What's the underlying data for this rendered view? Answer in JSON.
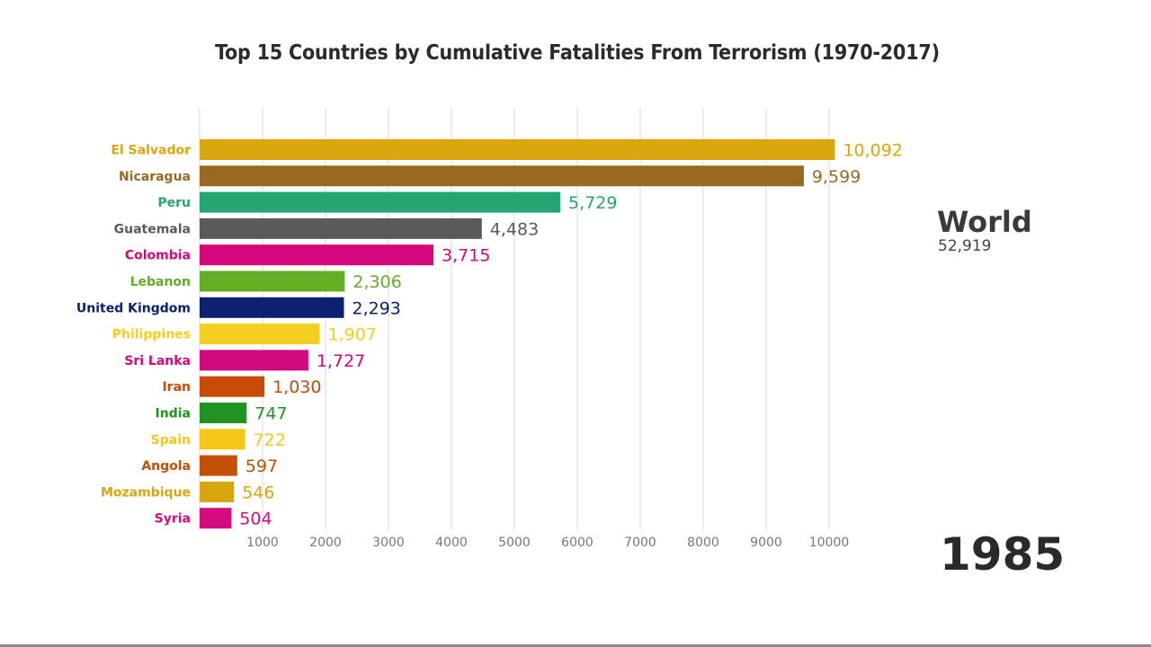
{
  "chart_data": {
    "type": "bar",
    "orientation": "horizontal",
    "title": "Top 15 Countries by Cumulative Fatalities From Terrorism (1970-2017)",
    "xlabel": "",
    "ylabel": "",
    "xlim": [
      0,
      10000
    ],
    "xticks": [
      1000,
      2000,
      3000,
      4000,
      5000,
      6000,
      7000,
      8000,
      9000,
      10000
    ],
    "grid": true,
    "categories": [
      "El Salvador",
      "Nicaragua",
      "Peru",
      "Guatemala",
      "Colombia",
      "Lebanon",
      "United Kingdom",
      "Philippines",
      "Sri Lanka",
      "Iran",
      "India",
      "Spain",
      "Angola",
      "Mozambique",
      "Syria"
    ],
    "values": [
      10092,
      9599,
      5729,
      4483,
      3715,
      2306,
      2293,
      1907,
      1727,
      1030,
      747,
      722,
      597,
      546,
      504
    ],
    "value_labels": [
      "10,092",
      "9,599",
      "5,729",
      "4,483",
      "3,715",
      "2,306",
      "2,293",
      "1,907",
      "1,727",
      "1,030",
      "747",
      "722",
      "597",
      "546",
      "504"
    ],
    "colors": [
      "#dba70c",
      "#9a6a22",
      "#23a672",
      "#5a5a5a",
      "#d4087a",
      "#62ae25",
      "#0c2170",
      "#f5cf1f",
      "#d1097c",
      "#c74c07",
      "#219320",
      "#f7c61a",
      "#c44f06",
      "#d9a60f",
      "#d60c7d"
    ],
    "annotations": {
      "world_label": "World",
      "world_total": "52,919",
      "year": "1985"
    }
  }
}
